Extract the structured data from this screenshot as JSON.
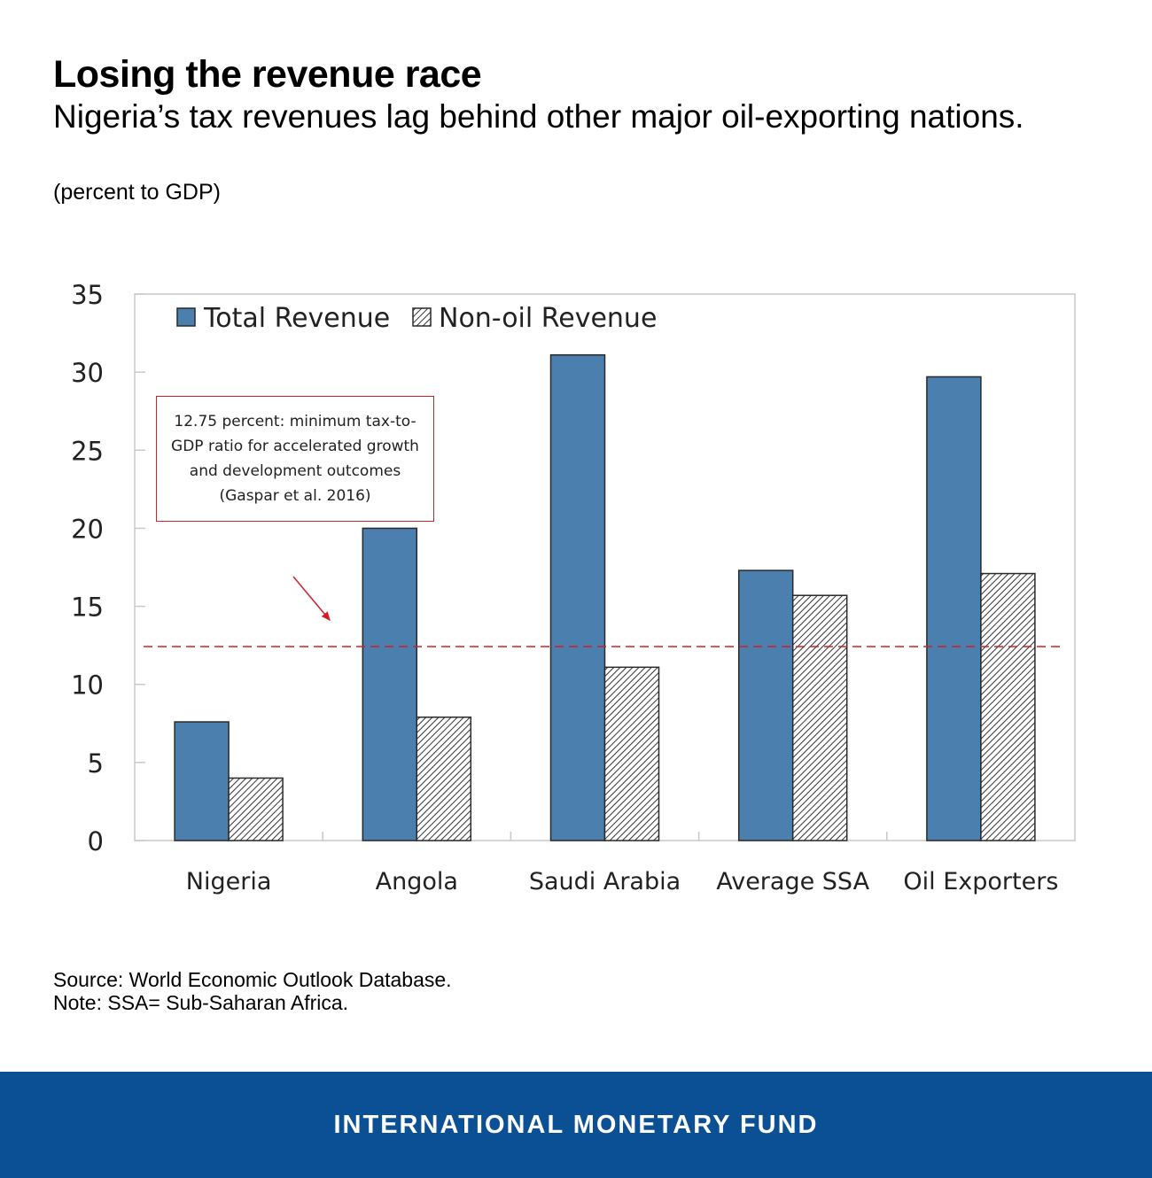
{
  "header": {
    "title": "Losing the revenue race",
    "subtitle": "Nigeria’s tax revenues lag behind other major oil-exporting nations.",
    "unit": "(percent to GDP)"
  },
  "chart_data": {
    "type": "bar",
    "title": "Losing the revenue race",
    "xlabel": "",
    "ylabel": "percent to GDP",
    "categories": [
      "Nigeria",
      "Angola",
      "Saudi Arabia",
      "Average SSA",
      "Oil Exporters"
    ],
    "series": [
      {
        "name": "Total Revenue",
        "color": "#4a7fae",
        "pattern": "solid",
        "values": [
          7.6,
          20.0,
          31.1,
          17.3,
          29.7
        ]
      },
      {
        "name": "Non-oil Revenue",
        "color": "#ffffff",
        "pattern": "diagonal-hatch",
        "values": [
          4.0,
          7.9,
          11.1,
          15.7,
          17.1
        ]
      }
    ],
    "ylim": [
      0,
      35
    ],
    "yticks": [
      0,
      5,
      10,
      15,
      20,
      25,
      30,
      35
    ],
    "grid": false,
    "legend": "top-left",
    "reference_line": {
      "value": 12.75,
      "color": "#d0202a",
      "style": "dashed"
    },
    "annotation": "12.75 percent: minimum tax-to-GDP ratio for accelerated growth and development outcomes (Gaspar et al. 2016)"
  },
  "footer": {
    "source": "Source: World Economic Outlook Database.",
    "note": "Note: SSA= Sub-Saharan Africa.",
    "brand": "INTERNATIONAL MONETARY FUND"
  },
  "colors": {
    "brand_blue": "#0b4f95",
    "bar_blue": "#4a7fae",
    "reference_red": "#d0202a"
  }
}
